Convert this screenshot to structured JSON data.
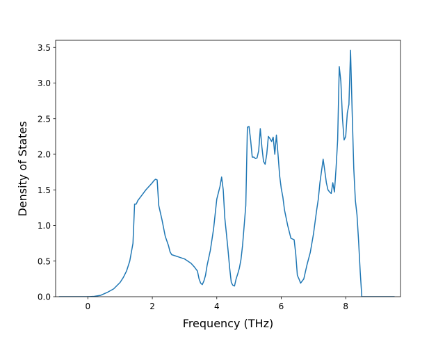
{
  "chart_data": {
    "type": "line",
    "title": "",
    "xlabel": "Frequency (THz)",
    "ylabel": "Density of States",
    "xlim": [
      -1.0,
      9.7
    ],
    "ylim": [
      0.0,
      3.6
    ],
    "xticks": [
      0,
      2,
      4,
      6,
      8
    ],
    "yticks": [
      0.0,
      0.5,
      1.0,
      1.5,
      2.0,
      2.5,
      3.0,
      3.5
    ],
    "xtick_labels": [
      "0",
      "2",
      "4",
      "6",
      "8"
    ],
    "ytick_labels": [
      "0.0",
      "0.5",
      "1.0",
      "1.5",
      "2.0",
      "2.5",
      "3.0",
      "3.5"
    ],
    "grid": false,
    "series": [
      {
        "color": "#1f77b4",
        "x": [
          -0.88,
          0.0,
          0.2,
          0.4,
          0.6,
          0.8,
          1.0,
          1.1,
          1.2,
          1.3,
          1.4,
          1.45,
          1.5,
          1.55,
          1.6,
          1.7,
          1.8,
          1.9,
          2.0,
          2.05,
          2.1,
          2.15,
          2.2,
          2.3,
          2.4,
          2.5,
          2.55,
          2.6,
          2.8,
          3.0,
          3.2,
          3.3,
          3.4,
          3.45,
          3.5,
          3.55,
          3.6,
          3.65,
          3.7,
          3.8,
          3.9,
          4.0,
          4.1,
          4.15,
          4.2,
          4.25,
          4.3,
          4.35,
          4.4,
          4.45,
          4.5,
          4.55,
          4.6,
          4.65,
          4.7,
          4.75,
          4.8,
          4.85,
          4.9,
          4.95,
          5.0,
          5.05,
          5.1,
          5.15,
          5.2,
          5.25,
          5.3,
          5.35,
          5.4,
          5.45,
          5.5,
          5.55,
          5.6,
          5.65,
          5.7,
          5.75,
          5.8,
          5.85,
          5.9,
          5.95,
          6.0,
          6.05,
          6.1,
          6.2,
          6.3,
          6.4,
          6.45,
          6.5,
          6.55,
          6.6,
          6.7,
          6.8,
          6.9,
          7.0,
          7.1,
          7.15,
          7.2,
          7.3,
          7.35,
          7.4,
          7.45,
          7.5,
          7.55,
          7.6,
          7.65,
          7.7,
          7.75,
          7.8,
          7.85,
          7.9,
          7.95,
          8.0,
          8.05,
          8.1,
          8.15,
          8.2,
          8.25,
          8.3,
          8.35,
          8.4,
          8.45,
          8.5,
          8.55,
          8.6,
          8.65,
          9.5
        ],
        "y": [
          0.0,
          0.0,
          0.005,
          0.02,
          0.06,
          0.11,
          0.2,
          0.27,
          0.36,
          0.5,
          0.75,
          1.3,
          1.3,
          1.35,
          1.38,
          1.44,
          1.5,
          1.55,
          1.6,
          1.63,
          1.65,
          1.64,
          1.28,
          1.08,
          0.85,
          0.72,
          0.63,
          0.59,
          0.56,
          0.53,
          0.47,
          0.42,
          0.36,
          0.25,
          0.19,
          0.17,
          0.22,
          0.3,
          0.44,
          0.65,
          0.95,
          1.37,
          1.55,
          1.68,
          1.5,
          1.1,
          0.88,
          0.65,
          0.4,
          0.2,
          0.16,
          0.15,
          0.25,
          0.32,
          0.4,
          0.52,
          0.72,
          1.0,
          1.28,
          2.38,
          2.39,
          2.2,
          1.96,
          1.96,
          1.94,
          1.95,
          2.05,
          2.36,
          2.1,
          1.9,
          1.86,
          2.0,
          2.25,
          2.22,
          2.18,
          2.24,
          2.0,
          2.27,
          2.0,
          1.7,
          1.52,
          1.4,
          1.22,
          1.0,
          0.82,
          0.8,
          0.6,
          0.3,
          0.25,
          0.19,
          0.25,
          0.45,
          0.62,
          0.88,
          1.22,
          1.37,
          1.6,
          1.93,
          1.77,
          1.6,
          1.5,
          1.47,
          1.45,
          1.6,
          1.47,
          1.8,
          2.2,
          3.23,
          3.02,
          2.5,
          2.2,
          2.25,
          2.58,
          2.7,
          3.46,
          2.6,
          1.8,
          1.35,
          1.15,
          0.78,
          0.35,
          0.0,
          0.0,
          0.0,
          0.0,
          0.0
        ]
      }
    ]
  }
}
